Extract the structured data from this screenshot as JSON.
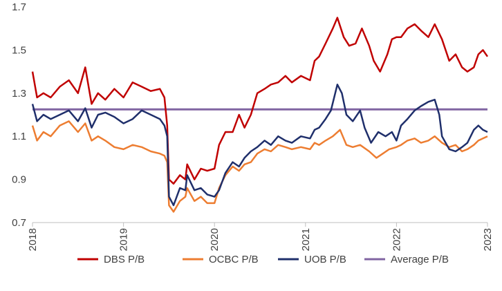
{
  "chart_data": {
    "type": "line",
    "title": "",
    "xlabel": "",
    "ylabel": "",
    "xlim": [
      2018,
      2023
    ],
    "ylim": [
      0.7,
      1.7
    ],
    "x_ticks": [
      "2018",
      "2019",
      "2020",
      "2021",
      "2022",
      "2023"
    ],
    "y_ticks": [
      "0.7",
      "0.9",
      "1.1",
      "1.3",
      "1.5",
      "1.7"
    ],
    "grid": false,
    "legend_position": "bottom",
    "series": [
      {
        "name": "DBS P/B",
        "color": "#C00000",
        "points": [
          [
            2018.0,
            1.4
          ],
          [
            2018.05,
            1.28
          ],
          [
            2018.12,
            1.3
          ],
          [
            2018.2,
            1.28
          ],
          [
            2018.3,
            1.33
          ],
          [
            2018.4,
            1.36
          ],
          [
            2018.5,
            1.3
          ],
          [
            2018.58,
            1.42
          ],
          [
            2018.65,
            1.25
          ],
          [
            2018.72,
            1.3
          ],
          [
            2018.8,
            1.27
          ],
          [
            2018.9,
            1.32
          ],
          [
            2019.0,
            1.28
          ],
          [
            2019.1,
            1.35
          ],
          [
            2019.2,
            1.33
          ],
          [
            2019.3,
            1.31
          ],
          [
            2019.4,
            1.32
          ],
          [
            2019.45,
            1.28
          ],
          [
            2019.48,
            1.15
          ],
          [
            2019.5,
            0.9
          ],
          [
            2019.55,
            0.88
          ],
          [
            2019.62,
            0.92
          ],
          [
            2019.68,
            0.9
          ],
          [
            2019.7,
            0.97
          ],
          [
            2019.78,
            0.9
          ],
          [
            2019.85,
            0.95
          ],
          [
            2019.92,
            0.94
          ],
          [
            2020.0,
            0.95
          ],
          [
            2020.05,
            1.06
          ],
          [
            2020.12,
            1.12
          ],
          [
            2020.2,
            1.12
          ],
          [
            2020.27,
            1.2
          ],
          [
            2020.33,
            1.14
          ],
          [
            2020.4,
            1.2
          ],
          [
            2020.47,
            1.3
          ],
          [
            2020.55,
            1.32
          ],
          [
            2020.62,
            1.34
          ],
          [
            2020.7,
            1.35
          ],
          [
            2020.78,
            1.38
          ],
          [
            2020.85,
            1.35
          ],
          [
            2020.95,
            1.38
          ],
          [
            2021.05,
            1.36
          ],
          [
            2021.1,
            1.45
          ],
          [
            2021.15,
            1.47
          ],
          [
            2021.22,
            1.53
          ],
          [
            2021.3,
            1.6
          ],
          [
            2021.35,
            1.65
          ],
          [
            2021.42,
            1.56
          ],
          [
            2021.48,
            1.52
          ],
          [
            2021.55,
            1.53
          ],
          [
            2021.62,
            1.6
          ],
          [
            2021.7,
            1.52
          ],
          [
            2021.75,
            1.45
          ],
          [
            2021.82,
            1.4
          ],
          [
            2021.9,
            1.48
          ],
          [
            2021.95,
            1.55
          ],
          [
            2022.0,
            1.56
          ],
          [
            2022.05,
            1.56
          ],
          [
            2022.12,
            1.6
          ],
          [
            2022.2,
            1.62
          ],
          [
            2022.27,
            1.59
          ],
          [
            2022.35,
            1.56
          ],
          [
            2022.42,
            1.62
          ],
          [
            2022.5,
            1.55
          ],
          [
            2022.58,
            1.45
          ],
          [
            2022.65,
            1.48
          ],
          [
            2022.72,
            1.42
          ],
          [
            2022.78,
            1.4
          ],
          [
            2022.85,
            1.42
          ],
          [
            2022.9,
            1.48
          ],
          [
            2022.95,
            1.5
          ],
          [
            2023.0,
            1.47
          ]
        ]
      },
      {
        "name": "OCBC P/B",
        "color": "#ED7D31",
        "points": [
          [
            2018.0,
            1.15
          ],
          [
            2018.05,
            1.08
          ],
          [
            2018.12,
            1.12
          ],
          [
            2018.2,
            1.1
          ],
          [
            2018.3,
            1.15
          ],
          [
            2018.4,
            1.17
          ],
          [
            2018.5,
            1.12
          ],
          [
            2018.58,
            1.16
          ],
          [
            2018.65,
            1.08
          ],
          [
            2018.72,
            1.1
          ],
          [
            2018.8,
            1.08
          ],
          [
            2018.9,
            1.05
          ],
          [
            2019.0,
            1.04
          ],
          [
            2019.1,
            1.06
          ],
          [
            2019.2,
            1.05
          ],
          [
            2019.3,
            1.03
          ],
          [
            2019.4,
            1.02
          ],
          [
            2019.45,
            1.01
          ],
          [
            2019.48,
            0.98
          ],
          [
            2019.5,
            0.78
          ],
          [
            2019.55,
            0.75
          ],
          [
            2019.62,
            0.8
          ],
          [
            2019.68,
            0.82
          ],
          [
            2019.7,
            0.86
          ],
          [
            2019.78,
            0.8
          ],
          [
            2019.85,
            0.82
          ],
          [
            2019.92,
            0.79
          ],
          [
            2020.0,
            0.79
          ],
          [
            2020.05,
            0.86
          ],
          [
            2020.12,
            0.92
          ],
          [
            2020.2,
            0.96
          ],
          [
            2020.27,
            0.94
          ],
          [
            2020.33,
            0.97
          ],
          [
            2020.4,
            0.98
          ],
          [
            2020.47,
            1.02
          ],
          [
            2020.55,
            1.04
          ],
          [
            2020.62,
            1.03
          ],
          [
            2020.7,
            1.06
          ],
          [
            2020.78,
            1.05
          ],
          [
            2020.85,
            1.04
          ],
          [
            2020.95,
            1.05
          ],
          [
            2021.05,
            1.04
          ],
          [
            2021.1,
            1.07
          ],
          [
            2021.15,
            1.06
          ],
          [
            2021.22,
            1.08
          ],
          [
            2021.3,
            1.1
          ],
          [
            2021.38,
            1.13
          ],
          [
            2021.45,
            1.06
          ],
          [
            2021.52,
            1.05
          ],
          [
            2021.6,
            1.06
          ],
          [
            2021.7,
            1.03
          ],
          [
            2021.78,
            1.0
          ],
          [
            2021.85,
            1.02
          ],
          [
            2021.92,
            1.04
          ],
          [
            2022.0,
            1.05
          ],
          [
            2022.05,
            1.06
          ],
          [
            2022.12,
            1.08
          ],
          [
            2022.2,
            1.09
          ],
          [
            2022.27,
            1.07
          ],
          [
            2022.35,
            1.08
          ],
          [
            2022.42,
            1.1
          ],
          [
            2022.5,
            1.07
          ],
          [
            2022.58,
            1.05
          ],
          [
            2022.65,
            1.06
          ],
          [
            2022.72,
            1.03
          ],
          [
            2022.78,
            1.04
          ],
          [
            2022.85,
            1.06
          ],
          [
            2022.9,
            1.08
          ],
          [
            2022.95,
            1.09
          ],
          [
            2023.0,
            1.1
          ]
        ]
      },
      {
        "name": "UOB P/B",
        "color": "#1F2F6B",
        "points": [
          [
            2018.0,
            1.25
          ],
          [
            2018.05,
            1.17
          ],
          [
            2018.12,
            1.2
          ],
          [
            2018.2,
            1.18
          ],
          [
            2018.3,
            1.2
          ],
          [
            2018.4,
            1.22
          ],
          [
            2018.5,
            1.17
          ],
          [
            2018.58,
            1.23
          ],
          [
            2018.65,
            1.14
          ],
          [
            2018.72,
            1.2
          ],
          [
            2018.8,
            1.21
          ],
          [
            2018.9,
            1.19
          ],
          [
            2019.0,
            1.16
          ],
          [
            2019.1,
            1.18
          ],
          [
            2019.2,
            1.22
          ],
          [
            2019.3,
            1.2
          ],
          [
            2019.4,
            1.18
          ],
          [
            2019.45,
            1.15
          ],
          [
            2019.48,
            1.1
          ],
          [
            2019.5,
            0.82
          ],
          [
            2019.55,
            0.78
          ],
          [
            2019.62,
            0.86
          ],
          [
            2019.68,
            0.85
          ],
          [
            2019.7,
            0.92
          ],
          [
            2019.78,
            0.85
          ],
          [
            2019.85,
            0.86
          ],
          [
            2019.92,
            0.83
          ],
          [
            2020.0,
            0.82
          ],
          [
            2020.05,
            0.85
          ],
          [
            2020.12,
            0.93
          ],
          [
            2020.2,
            0.98
          ],
          [
            2020.27,
            0.96
          ],
          [
            2020.33,
            1.0
          ],
          [
            2020.4,
            1.03
          ],
          [
            2020.47,
            1.05
          ],
          [
            2020.55,
            1.08
          ],
          [
            2020.62,
            1.06
          ],
          [
            2020.7,
            1.1
          ],
          [
            2020.78,
            1.08
          ],
          [
            2020.85,
            1.07
          ],
          [
            2020.95,
            1.1
          ],
          [
            2021.05,
            1.09
          ],
          [
            2021.1,
            1.13
          ],
          [
            2021.15,
            1.14
          ],
          [
            2021.22,
            1.18
          ],
          [
            2021.28,
            1.22
          ],
          [
            2021.35,
            1.34
          ],
          [
            2021.4,
            1.3
          ],
          [
            2021.45,
            1.2
          ],
          [
            2021.52,
            1.17
          ],
          [
            2021.6,
            1.22
          ],
          [
            2021.65,
            1.14
          ],
          [
            2021.72,
            1.07
          ],
          [
            2021.8,
            1.12
          ],
          [
            2021.88,
            1.1
          ],
          [
            2021.95,
            1.12
          ],
          [
            2022.0,
            1.08
          ],
          [
            2022.05,
            1.15
          ],
          [
            2022.12,
            1.18
          ],
          [
            2022.2,
            1.22
          ],
          [
            2022.27,
            1.24
          ],
          [
            2022.35,
            1.26
          ],
          [
            2022.42,
            1.27
          ],
          [
            2022.47,
            1.2
          ],
          [
            2022.5,
            1.1
          ],
          [
            2022.58,
            1.04
          ],
          [
            2022.65,
            1.03
          ],
          [
            2022.72,
            1.05
          ],
          [
            2022.78,
            1.07
          ],
          [
            2022.85,
            1.13
          ],
          [
            2022.9,
            1.15
          ],
          [
            2022.95,
            1.13
          ],
          [
            2023.0,
            1.12
          ]
        ]
      },
      {
        "name": "Average P/B",
        "color": "#8064A2",
        "points": [
          [
            2018.0,
            1.225
          ],
          [
            2023.0,
            1.225
          ]
        ]
      }
    ]
  }
}
